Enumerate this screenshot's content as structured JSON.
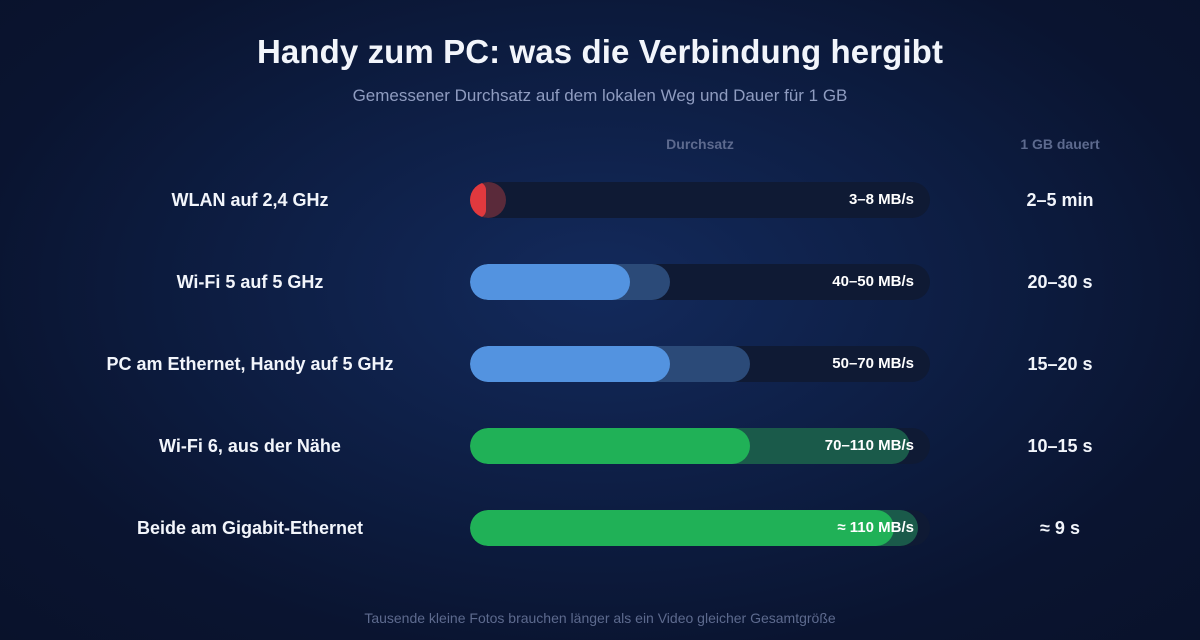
{
  "chart_data": {
    "type": "bar",
    "title": "Handy zum PC: was die Verbindung hergibt",
    "subtitle": "Gemessener Durchsatz auf dem lokalen Weg und Dauer für 1 GB",
    "column_headers": {
      "throughput": "Durchsatz",
      "duration": "1 GB dauert"
    },
    "unit": "MB/s",
    "xlim": [
      0,
      115
    ],
    "rows": [
      {
        "label": "WLAN auf 2,4 GHz",
        "min": 3,
        "max": 8,
        "value_label": "3–8 MB/s",
        "duration": "2–5 min",
        "color": "#e0393e",
        "range_color": "#5a2a3a"
      },
      {
        "label": "Wi-Fi 5 auf 5 GHz",
        "min": 40,
        "max": 50,
        "value_label": "40–50 MB/s",
        "duration": "20–30 s",
        "color": "#5393e0",
        "range_color": "#2b4a78"
      },
      {
        "label": "PC am Ethernet, Handy auf 5 GHz",
        "min": 50,
        "max": 70,
        "value_label": "50–70 MB/s",
        "duration": "15–20 s",
        "color": "#5393e0",
        "range_color": "#2b4a78"
      },
      {
        "label": "Wi-Fi 6, aus der Nähe",
        "min": 70,
        "max": 110,
        "value_label": "70–110 MB/s",
        "duration": "10–15 s",
        "color": "#20b157",
        "range_color": "#1a5a4a"
      },
      {
        "label": "Beide am Gigabit-Ethernet",
        "min": 106,
        "max": 112,
        "value_label": "≈ 110 MB/s",
        "duration": "≈ 9 s",
        "color": "#20b157",
        "range_color": "#1a5a4a"
      }
    ],
    "footnote": "Tausende kleine Fotos brauchen länger als ein Video gleicher Gesamtgröße"
  }
}
